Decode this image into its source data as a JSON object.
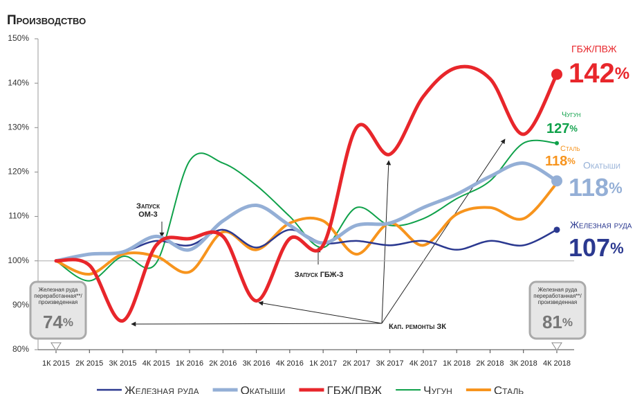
{
  "chart_data": {
    "type": "line",
    "title": "Производство",
    "categories": [
      "1К 2015",
      "2К 2015",
      "3К 2015",
      "4К 2015",
      "1К 2016",
      "2К 2016",
      "3К 2016",
      "4К 2016",
      "1К 2017",
      "2К 2017",
      "3К 2017",
      "4К 2017",
      "1К 2018",
      "2К 2018",
      "3К 2018",
      "4К 2018"
    ],
    "series": [
      {
        "name": "Железная руда",
        "color": "#2b3990",
        "values": [
          100,
          101.5,
          102,
          104.5,
          103.5,
          107,
          103,
          107,
          104,
          104.5,
          103.5,
          104.5,
          102.5,
          104.5,
          103.5,
          107
        ],
        "end_label": "107%"
      },
      {
        "name": "Окатыши",
        "color": "#94afd6",
        "values": [
          100,
          101.5,
          102,
          105.5,
          102.5,
          109,
          112.5,
          108,
          104,
          108,
          108.5,
          112,
          115,
          119,
          122,
          118
        ],
        "end_label": "118%"
      },
      {
        "name": "ГБЖ/ПВЖ",
        "color": "#e8262b",
        "values": [
          100,
          99,
          86.5,
          103.5,
          105,
          105.5,
          91,
          105,
          103.5,
          130,
          124,
          137,
          143.5,
          141,
          128.5,
          142
        ],
        "end_label": "142%"
      },
      {
        "name": "Чугун",
        "color": "#0fa14a",
        "values": [
          100,
          95.5,
          101,
          99.5,
          122.5,
          122,
          117,
          110,
          103,
          112,
          108,
          109.5,
          114,
          118,
          126.5,
          126.5
        ],
        "end_label": "127%"
      },
      {
        "name": "Сталь",
        "color": "#f7941d",
        "values": [
          100,
          97,
          101.5,
          101,
          97.5,
          106.5,
          102.5,
          108.5,
          109,
          101.5,
          108.5,
          103.5,
          110.5,
          112,
          109.5,
          117.5
        ],
        "end_label": "118%"
      }
    ],
    "ylim": [
      80,
      150
    ],
    "yticks": [
      {
        "value": 80,
        "label": "80%"
      },
      {
        "value": 90,
        "label": "90%"
      },
      {
        "value": 100,
        "label": "100%"
      },
      {
        "value": 110,
        "label": "110%"
      },
      {
        "value": 120,
        "label": "120%"
      },
      {
        "value": 130,
        "label": "130%"
      },
      {
        "value": 140,
        "label": "140%"
      },
      {
        "value": 150,
        "label": "150%"
      }
    ],
    "reference_line": 100,
    "grid": false,
    "annotations": {
      "launch_om3": [
        "Запуск",
        "ОМ-3"
      ],
      "launch_gbzh3": "Запуск ГБЖ-3",
      "repairs": "Кап. ремонты ЗК"
    },
    "boxes": [
      {
        "text": [
          "Железная руда",
          "переработанная**/",
          "произведенная"
        ],
        "value": "74%"
      },
      {
        "text": [
          "Железная руда",
          "переработанная**/",
          "произведенная"
        ],
        "value": "81%"
      }
    ]
  }
}
